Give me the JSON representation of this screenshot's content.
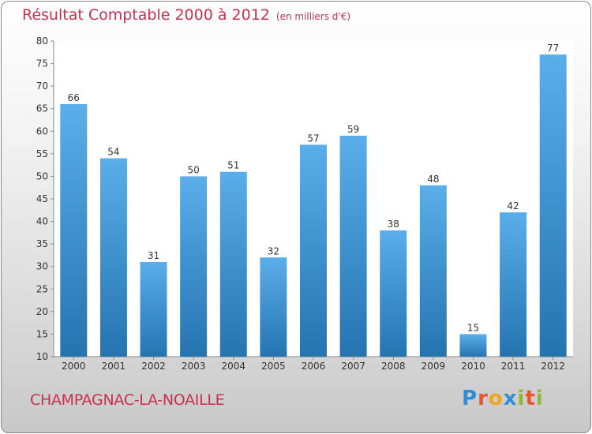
{
  "header": {
    "title": "Résultat Comptable 2000 à 2012",
    "subtitle": "(en milliers d'€)"
  },
  "footer": {
    "commune": "CHAMPAGNAC-LA-NOAILLE",
    "logo_letters": [
      {
        "ch": "P",
        "color": "#2e8fd6"
      },
      {
        "ch": "r",
        "color": "#e8542e"
      },
      {
        "ch": "o",
        "color": "#f2a31c"
      },
      {
        "ch": "x",
        "color": "#2e8fd6"
      },
      {
        "ch": "i",
        "color": "#8dbb2f"
      },
      {
        "ch": "t",
        "color": "#e8542e"
      },
      {
        "ch": "i",
        "color": "#8dbb2f"
      }
    ]
  },
  "colors": {
    "bar_top": "#5aaeea",
    "bar_bottom": "#2474b0",
    "accent": "#c8304e"
  },
  "chart_data": {
    "type": "bar",
    "title": "Résultat Comptable 2000 à 2012",
    "subtitle": "(en milliers d'€)",
    "categories": [
      "2000",
      "2001",
      "2002",
      "2003",
      "2004",
      "2005",
      "2006",
      "2007",
      "2008",
      "2009",
      "2010",
      "2011",
      "2012"
    ],
    "values": [
      66,
      54,
      31,
      50,
      51,
      32,
      57,
      59,
      38,
      48,
      15,
      42,
      77
    ],
    "ylim": [
      10,
      80
    ],
    "yticks": [
      10,
      15,
      20,
      25,
      30,
      35,
      40,
      45,
      50,
      55,
      60,
      65,
      70,
      75,
      80
    ],
    "grid": false,
    "data_labels": true,
    "xlabel": "",
    "ylabel": ""
  }
}
